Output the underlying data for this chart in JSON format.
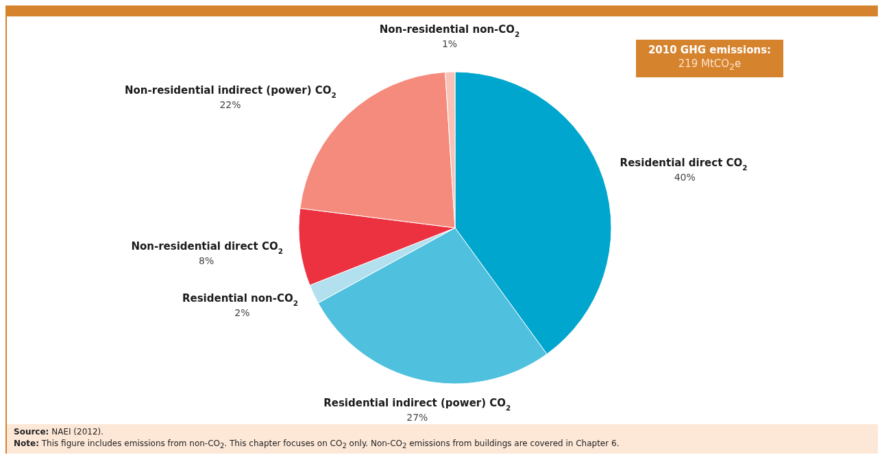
{
  "chart_data": {
    "type": "pie",
    "categories": [
      "Residential direct CO$_{2}$",
      "Residential indirect (power) CO$_{2}$",
      "Residential non-CO$_{2}$",
      "Non-residential direct CO$_{2}$",
      "Non-residential indirect (power) CO$_{2}$",
      "Non-residential non-CO$_{2}$"
    ],
    "values": [
      40,
      27,
      2,
      8,
      22,
      1
    ],
    "value_labels": [
      "40%",
      "27%",
      "2%",
      "8%",
      "22%",
      "1%"
    ],
    "colors": [
      "#00a6ce",
      "#4fc0dd",
      "#b3e0ee",
      "#ec3240",
      "#f48b7c",
      "#f9c2b6"
    ],
    "annotations": [
      "2010 GHG emissions: 219 MtCO$_{2}$e",
      "Source: NAEI (2012).",
      "Note: This figure includes emissions from non-CO$_{2}$. This chapter focuses on CO$_{2}$ only. Non-CO$_{2}$ emissions from buildings are covered in Chapter 6."
    ]
  }
}
